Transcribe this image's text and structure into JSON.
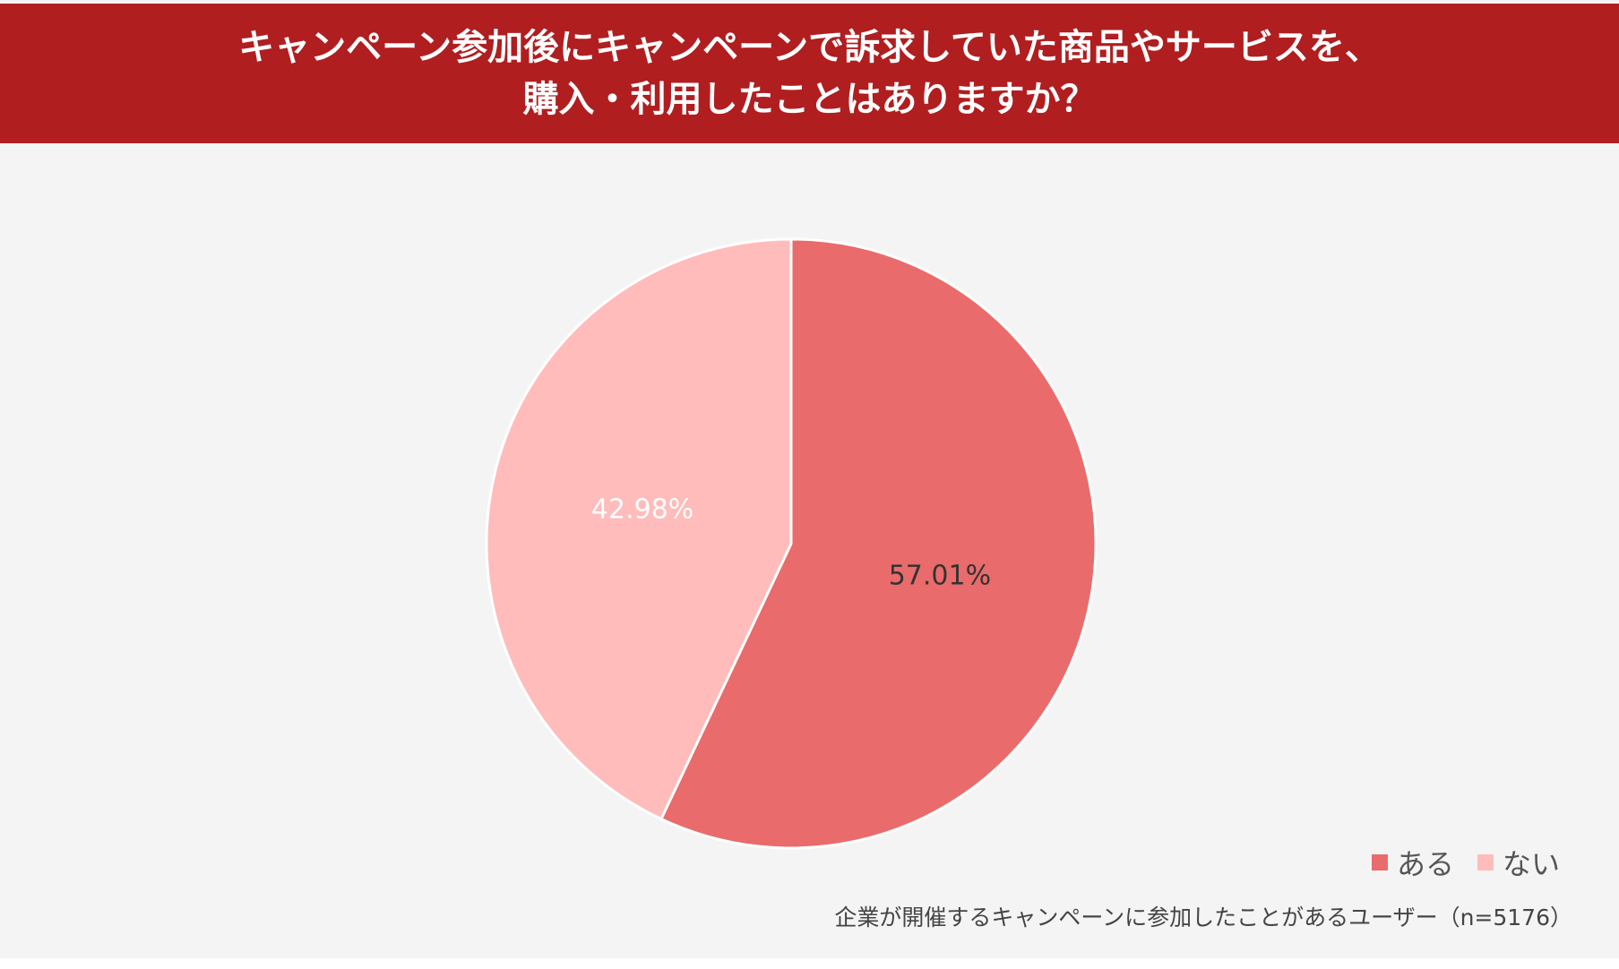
{
  "header": {
    "title_line1": "キャンペーン参加後にキャンペーンで訴求していた商品やサービスを、",
    "title_line2": "購入・利用したことはありますか？",
    "background": "#b01e20"
  },
  "chart_data": {
    "type": "pie",
    "title": "キャンペーン参加後にキャンペーンで訴求していた商品やサービスを、購入・利用したことはありますか？",
    "categories": [
      "ある",
      "ない"
    ],
    "values": [
      57.01,
      42.98
    ],
    "labels": [
      "57.01%",
      "42.98%"
    ],
    "colors": [
      "#ea6b6b",
      "#ffbcba"
    ],
    "label_colors": [
      "#333333",
      "#ffffff"
    ],
    "legend_placement": "bottom-right"
  },
  "footnote": "企業が開催するキャンペーンに参加したことがあるユーザー（n=5176）"
}
